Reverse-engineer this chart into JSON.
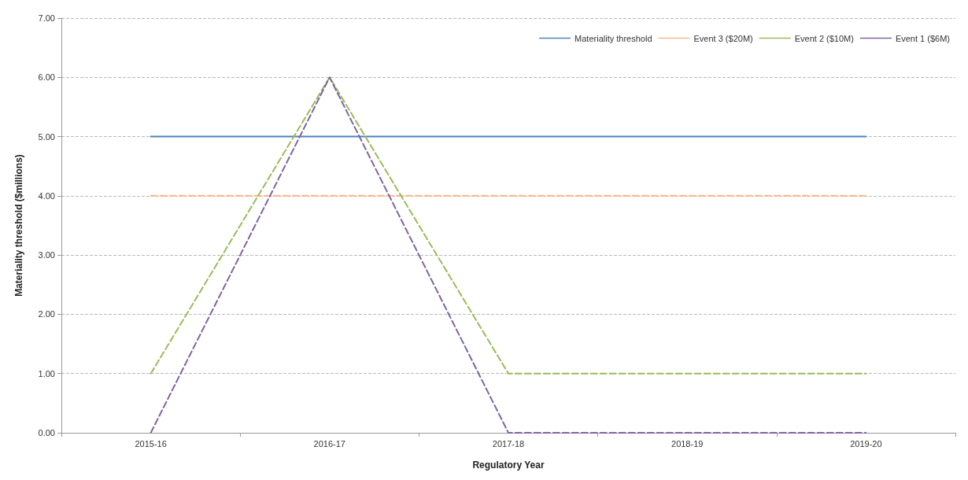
{
  "chart_data": {
    "type": "line",
    "xlabel": "Regulatory Year",
    "ylabel": "Materiality threshold ($millions)",
    "categories": [
      "2015-16",
      "2016-17",
      "2017-18",
      "2018-19",
      "2019-20"
    ],
    "series": [
      {
        "name": "Materiality threshold",
        "color": "#4f81bd",
        "line_style": "solid",
        "values": [
          5,
          5,
          5,
          5,
          5
        ]
      },
      {
        "name": "Event 3 ($20M)",
        "color": "#f9b98a",
        "line_style": "dashed",
        "values": [
          4,
          4,
          4,
          4,
          4
        ]
      },
      {
        "name": "Event 2 ($10M)",
        "color": "#9bbb59",
        "line_style": "dashed",
        "values": [
          1,
          6,
          1,
          1,
          1
        ]
      },
      {
        "name": "Event 1 ($6M)",
        "color": "#8064a2",
        "line_style": "dashed",
        "values": [
          0,
          6,
          0,
          0,
          0
        ]
      }
    ],
    "ylim": [
      0,
      7
    ],
    "yticks": [
      {
        "value": 0,
        "label": "0.00"
      },
      {
        "value": 1,
        "label": "1.00"
      },
      {
        "value": 2,
        "label": "2.00"
      },
      {
        "value": 3,
        "label": "3.00"
      },
      {
        "value": 4,
        "label": "4.00"
      },
      {
        "value": 5,
        "label": "5.00"
      },
      {
        "value": 6,
        "label": "6.00"
      },
      {
        "value": 7,
        "label": "7.00"
      }
    ],
    "grid": "y",
    "legend": "top right",
    "marker": "none"
  }
}
